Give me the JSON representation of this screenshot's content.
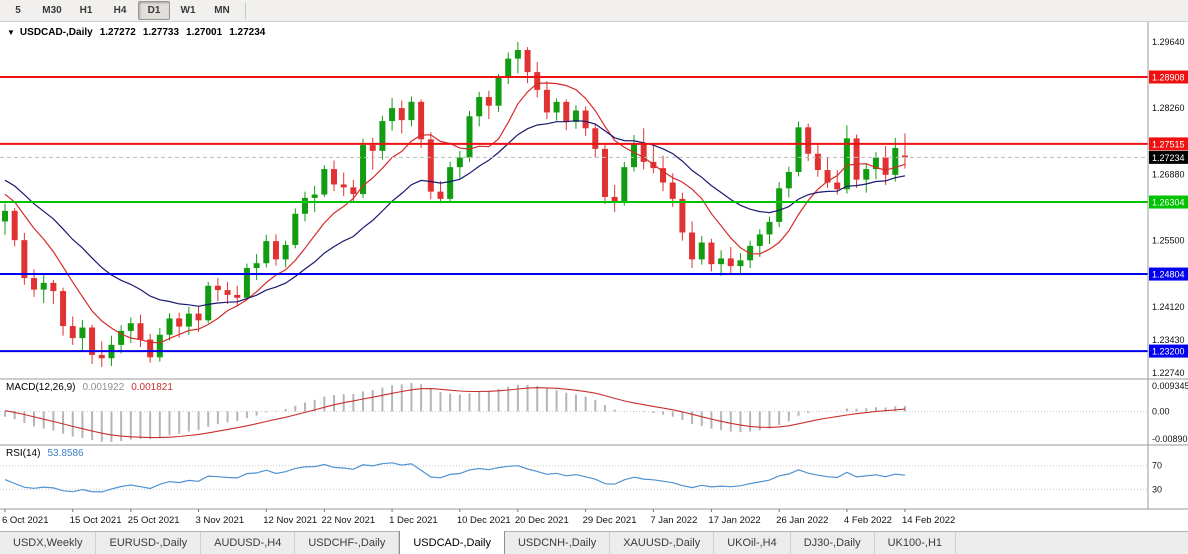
{
  "toolbar": {
    "timeframes": [
      "5",
      "M30",
      "H1",
      "H4",
      "D1",
      "W1",
      "MN"
    ],
    "active": "D1"
  },
  "symbol_info": {
    "dropdown_icon": "▼",
    "title": "USDCAD-,Daily",
    "open": "1.27272",
    "high": "1.27733",
    "low": "1.27001",
    "close": "1.27234"
  },
  "price_axis": {
    "labels": [
      "1.29640",
      "1.28260",
      "1.26880",
      "1.25500",
      "1.24120",
      "1.23430",
      "1.22740"
    ]
  },
  "levels": [
    {
      "price": 1.28908,
      "label": "1.28908",
      "color": "#ee1111"
    },
    {
      "price": 1.27515,
      "label": "1.27515",
      "color": "#ee1111"
    },
    {
      "price": 1.26304,
      "label": "1.26304",
      "color": "#00c300"
    },
    {
      "price": 1.24804,
      "label": "1.24804",
      "color": "#0000ee"
    },
    {
      "price": 1.232,
      "label": "1.23200",
      "color": "#0000ee"
    }
  ],
  "current_price": {
    "value": 1.27234,
    "label": "1.27234",
    "bg": "#000000"
  },
  "macd_panel": {
    "label": "MACD(12,26,9)",
    "value_main": "0.001922",
    "value_signal": "0.001821",
    "axis_top": "0.009345",
    "axis_zero": "0.00",
    "axis_bottom": "-0.00890"
  },
  "rsi_panel": {
    "label": "RSI(14)",
    "value": "53.8586",
    "levels": [
      70,
      30
    ],
    "level_labels": [
      "70",
      "30"
    ]
  },
  "time_axis": {
    "labels": [
      "6 Oct 2021",
      "15 Oct 2021",
      "25 Oct 2021",
      "3 Nov 2021",
      "12 Nov 2021",
      "22 Nov 2021",
      "1 Dec 2021",
      "10 Dec 2021",
      "20 Dec 2021",
      "29 Dec 2021",
      "7 Jan 2022",
      "17 Jan 2022",
      "26 Jan 2022",
      "4 Feb 2022",
      "14 Feb 2022"
    ],
    "indices": [
      0,
      7,
      13,
      20,
      27,
      33,
      40,
      47,
      53,
      60,
      67,
      73,
      80,
      87,
      93
    ]
  },
  "tabs": {
    "items": [
      "USDX,Weekly",
      "EURUSD-,Daily",
      "AUDUSD-,H4",
      "USDCHF-,Daily",
      "USDCAD-,Daily",
      "USDCNH-,Daily",
      "XAUUSD-,Daily",
      "UKOil-,H4",
      "DJ30-,Daily",
      "UK100-,H1"
    ],
    "selected": "USDCAD-,Daily"
  },
  "chart_data": {
    "type": "candlestick",
    "symbol": "USDCAD",
    "timeframe": "Daily",
    "ylim": {
      "top": 1.2997,
      "bottom": 1.2266
    },
    "ohlc": [
      [
        1.259,
        1.2627,
        1.2562,
        1.2612
      ],
      [
        1.2612,
        1.2618,
        1.2538,
        1.2551
      ],
      [
        1.2551,
        1.2566,
        1.2458,
        1.2472
      ],
      [
        1.2472,
        1.249,
        1.2433,
        1.2448
      ],
      [
        1.2448,
        1.2478,
        1.242,
        1.2462
      ],
      [
        1.2462,
        1.2468,
        1.2418,
        1.2445
      ],
      [
        1.2445,
        1.2452,
        1.2352,
        1.2372
      ],
      [
        1.2372,
        1.2392,
        1.2333,
        1.2347
      ],
      [
        1.2347,
        1.2385,
        1.232,
        1.2369
      ],
      [
        1.2369,
        1.2375,
        1.2293,
        1.2312
      ],
      [
        1.2312,
        1.234,
        1.2287,
        1.2305
      ],
      [
        1.2305,
        1.2352,
        1.2289,
        1.2333
      ],
      [
        1.2333,
        1.2374,
        1.2315,
        1.2362
      ],
      [
        1.2362,
        1.239,
        1.2337,
        1.2378
      ],
      [
        1.2378,
        1.2396,
        1.2328,
        1.2344
      ],
      [
        1.2344,
        1.2356,
        1.2296,
        1.2307
      ],
      [
        1.2307,
        1.2368,
        1.2298,
        1.2354
      ],
      [
        1.2354,
        1.2399,
        1.2342,
        1.2388
      ],
      [
        1.2388,
        1.24,
        1.2348,
        1.2371
      ],
      [
        1.2371,
        1.2412,
        1.2354,
        1.2398
      ],
      [
        1.2398,
        1.2414,
        1.236,
        1.2384
      ],
      [
        1.2384,
        1.2464,
        1.2378,
        1.2456
      ],
      [
        1.2456,
        1.2472,
        1.2424,
        1.2447
      ],
      [
        1.2447,
        1.2464,
        1.2418,
        1.2437
      ],
      [
        1.2437,
        1.2456,
        1.2413,
        1.2431
      ],
      [
        1.2431,
        1.2502,
        1.2426,
        1.2493
      ],
      [
        1.2493,
        1.2522,
        1.2468,
        1.2503
      ],
      [
        1.2503,
        1.2562,
        1.2494,
        1.2549
      ],
      [
        1.2549,
        1.2563,
        1.2498,
        1.2511
      ],
      [
        1.2511,
        1.255,
        1.2494,
        1.2541
      ],
      [
        1.2541,
        1.2617,
        1.2534,
        1.2606
      ],
      [
        1.2606,
        1.2652,
        1.259,
        1.2639
      ],
      [
        1.2639,
        1.2664,
        1.261,
        1.2646
      ],
      [
        1.2646,
        1.2707,
        1.2641,
        1.2699
      ],
      [
        1.2699,
        1.2717,
        1.2653,
        1.2667
      ],
      [
        1.2667,
        1.2692,
        1.2643,
        1.2661
      ],
      [
        1.2661,
        1.2676,
        1.263,
        1.2647
      ],
      [
        1.2647,
        1.2762,
        1.2639,
        1.2749
      ],
      [
        1.2749,
        1.2764,
        1.2698,
        1.2737
      ],
      [
        1.2737,
        1.281,
        1.2719,
        1.2799
      ],
      [
        1.2799,
        1.2847,
        1.2779,
        1.2826
      ],
      [
        1.2826,
        1.2842,
        1.2773,
        1.2801
      ],
      [
        1.2801,
        1.285,
        1.2788,
        1.2839
      ],
      [
        1.2839,
        1.2844,
        1.2743,
        1.2761
      ],
      [
        1.2761,
        1.2776,
        1.2636,
        1.2652
      ],
      [
        1.2652,
        1.2674,
        1.2628,
        1.2637
      ],
      [
        1.2637,
        1.2714,
        1.2631,
        1.2703
      ],
      [
        1.2703,
        1.2737,
        1.2678,
        1.2723
      ],
      [
        1.2723,
        1.282,
        1.2714,
        1.2809
      ],
      [
        1.2809,
        1.286,
        1.2788,
        1.2849
      ],
      [
        1.2849,
        1.2862,
        1.2803,
        1.2831
      ],
      [
        1.2831,
        1.2897,
        1.2818,
        1.2889
      ],
      [
        1.2889,
        1.2942,
        1.2876,
        1.2929
      ],
      [
        1.2929,
        1.2964,
        1.2898,
        1.2947
      ],
      [
        1.2947,
        1.2953,
        1.2878,
        1.2901
      ],
      [
        1.2901,
        1.2922,
        1.2848,
        1.2864
      ],
      [
        1.2864,
        1.2882,
        1.2803,
        1.2817
      ],
      [
        1.2817,
        1.2846,
        1.28,
        1.2839
      ],
      [
        1.2839,
        1.2844,
        1.278,
        1.2797
      ],
      [
        1.2797,
        1.2832,
        1.2783,
        1.2821
      ],
      [
        1.2821,
        1.283,
        1.2768,
        1.2784
      ],
      [
        1.2784,
        1.2793,
        1.2723,
        1.2741
      ],
      [
        1.2741,
        1.2749,
        1.2626,
        1.2641
      ],
      [
        1.2641,
        1.2666,
        1.261,
        1.2629
      ],
      [
        1.2629,
        1.2714,
        1.2623,
        1.2703
      ],
      [
        1.2703,
        1.277,
        1.2694,
        1.2753
      ],
      [
        1.2753,
        1.2784,
        1.2698,
        1.2714
      ],
      [
        1.2714,
        1.275,
        1.269,
        1.2701
      ],
      [
        1.2701,
        1.2727,
        1.2653,
        1.2671
      ],
      [
        1.2671,
        1.269,
        1.262,
        1.2637
      ],
      [
        1.2637,
        1.265,
        1.255,
        1.2567
      ],
      [
        1.2567,
        1.259,
        1.2493,
        1.2511
      ],
      [
        1.2511,
        1.256,
        1.25,
        1.2546
      ],
      [
        1.2546,
        1.2554,
        1.2486,
        1.2501
      ],
      [
        1.2501,
        1.253,
        1.2477,
        1.2513
      ],
      [
        1.2513,
        1.2537,
        1.2481,
        1.2497
      ],
      [
        1.2497,
        1.2524,
        1.2479,
        1.2509
      ],
      [
        1.2509,
        1.255,
        1.2493,
        1.2539
      ],
      [
        1.2539,
        1.2574,
        1.2516,
        1.2563
      ],
      [
        1.2563,
        1.26,
        1.2543,
        1.2589
      ],
      [
        1.2589,
        1.2672,
        1.2578,
        1.2659
      ],
      [
        1.2659,
        1.2704,
        1.264,
        1.2693
      ],
      [
        1.2693,
        1.2798,
        1.2684,
        1.2786
      ],
      [
        1.2786,
        1.2794,
        1.2716,
        1.2731
      ],
      [
        1.2731,
        1.275,
        1.2683,
        1.2697
      ],
      [
        1.2697,
        1.2724,
        1.266,
        1.2671
      ],
      [
        1.2671,
        1.2697,
        1.2646,
        1.2657
      ],
      [
        1.2657,
        1.279,
        1.2648,
        1.2763
      ],
      [
        1.2763,
        1.2771,
        1.266,
        1.2677
      ],
      [
        1.2677,
        1.271,
        1.265,
        1.2699
      ],
      [
        1.2699,
        1.2734,
        1.2678,
        1.2723
      ],
      [
        1.2723,
        1.2747,
        1.2666,
        1.2687
      ],
      [
        1.2687,
        1.2764,
        1.2673,
        1.2743
      ],
      [
        1.27272,
        1.27733,
        1.27001,
        1.27234
      ]
    ],
    "indicator_seed_closes": [
      1.2605,
      1.258,
      1.262,
      1.2665,
      1.264,
      1.268,
      1.272,
      1.2765,
      1.281,
      1.2855,
      1.2895,
      1.287,
      1.283,
      1.279,
      1.276,
      1.273,
      1.2705,
      1.268,
      1.266,
      1.268,
      1.2695,
      1.2665,
      1.264,
      1.2655,
      1.2625,
      1.26
    ],
    "ma_fast": {
      "type": "sma",
      "period": 8,
      "color": "#d52b2b"
    },
    "ma_slow": {
      "type": "ema",
      "period": 20,
      "color": "#191970"
    },
    "macd": {
      "fast": 12,
      "slow": 26,
      "signal": 9
    },
    "rsi_period": 14,
    "colors": {
      "up": "#119c11",
      "down": "#e03232",
      "macd_hist": "#b5b5b5",
      "macd_signal": "#c92f2f",
      "rsi": "#4f93d2"
    }
  }
}
